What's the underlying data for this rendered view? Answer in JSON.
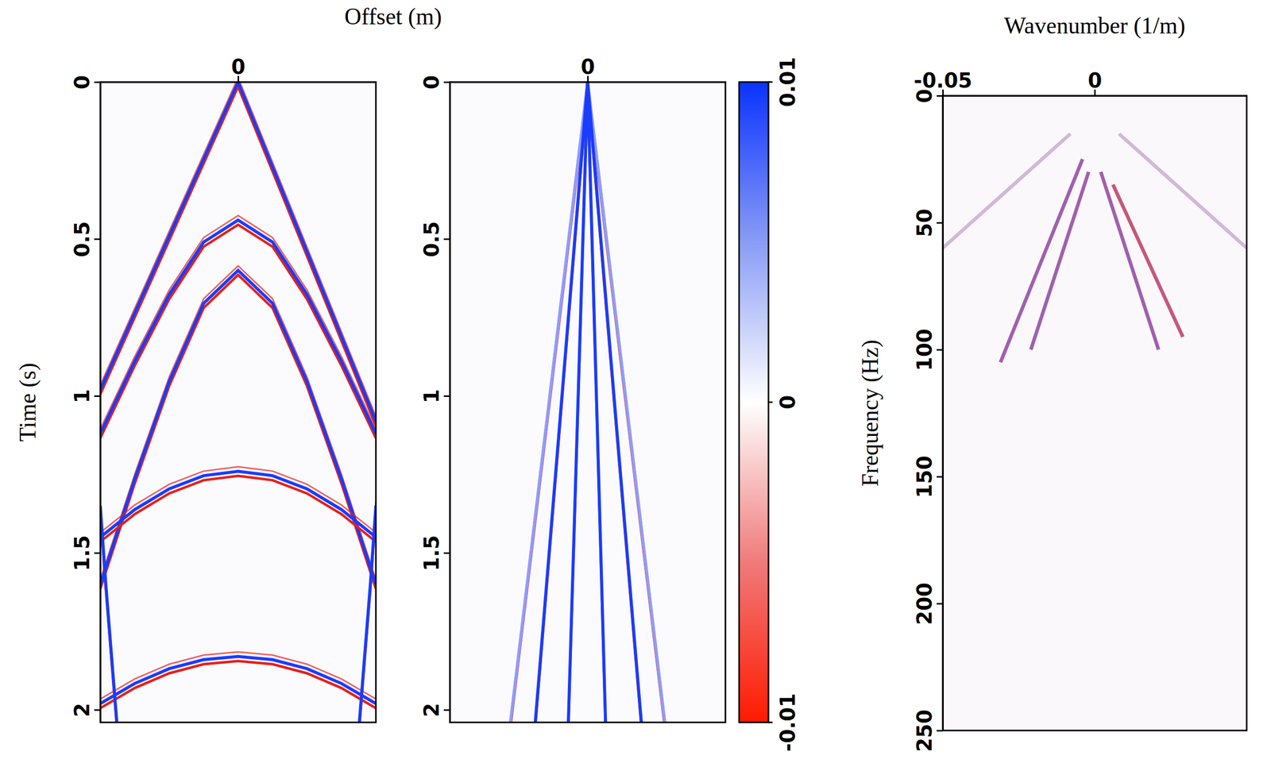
{
  "chart_data": [
    {
      "type": "line",
      "xlabel": "Offset (m)",
      "ylabel": "Time (s)",
      "line_style": "wavelet",
      "xlim": [
        -1000,
        1000
      ],
      "xticks": [
        0
      ],
      "ylim": [
        0,
        2.04
      ],
      "yticks": [
        0,
        0.5,
        1,
        1.5,
        2
      ],
      "series": [
        {
          "color": "#1a3cff",
          "x": [
            -1000,
            0,
            1000
          ],
          "values": [
            0.98,
            0,
            1.08
          ]
        },
        {
          "color": "#1a3cff",
          "x": [
            -1000,
            -750,
            -500,
            -250,
            0,
            250,
            500,
            750,
            1000
          ],
          "values": [
            1.12,
            0.889,
            0.677,
            0.51,
            0.44,
            0.51,
            0.677,
            0.889,
            1.12
          ]
        },
        {
          "color": "#1a3cff",
          "x": [
            -1000,
            -750,
            -500,
            -250,
            0,
            250,
            500,
            750,
            1000
          ],
          "values": [
            1.6,
            1.264,
            0.954,
            0.705,
            0.6,
            0.705,
            0.954,
            1.264,
            1.6
          ]
        },
        {
          "color": "#1a3cff",
          "x": [
            -1000,
            -750,
            -500,
            -250,
            0,
            250,
            500,
            750,
            1000
          ],
          "values": [
            1.45,
            1.362,
            1.296,
            1.254,
            1.24,
            1.254,
            1.296,
            1.362,
            1.45
          ]
        },
        {
          "color": "#1a3cff",
          "x": [
            -1000,
            -750,
            -500,
            -250,
            0,
            250,
            500,
            750,
            1000
          ],
          "values": [
            1.98,
            1.916,
            1.869,
            1.84,
            1.83,
            1.84,
            1.869,
            1.916,
            1.98
          ]
        },
        {
          "color": "#1a3cff",
          "x": [
            -1000,
            -960,
            -920,
            -880
          ],
          "values": [
            1.35,
            1.6,
            1.82,
            2.04
          ]
        },
        {
          "color": "#1a3cff",
          "x": [
            880,
            920,
            960,
            1000
          ],
          "values": [
            2.04,
            1.82,
            1.6,
            1.35
          ]
        }
      ]
    },
    {
      "type": "line",
      "line_style": "wavelet",
      "xlim": [
        -1000,
        1000
      ],
      "xticks": [
        0
      ],
      "ylim": [
        0,
        2.04
      ],
      "yticks": [
        0,
        0.5,
        1,
        1.5,
        2
      ],
      "colorbar_lim": [
        -0.01,
        0.01
      ],
      "colorbar_ticks": [
        -0.01,
        0,
        0.01
      ],
      "series": [
        {
          "color": "#8f9cff",
          "x": [
            -560,
            0,
            560
          ],
          "values": [
            2.04,
            0,
            2.04
          ]
        },
        {
          "color": "#1a3cff",
          "x": [
            -380,
            0,
            390
          ],
          "values": [
            2.04,
            0,
            2.04
          ]
        },
        {
          "color": "#1a3cff",
          "x": [
            -140,
            0,
            130
          ],
          "values": [
            2.04,
            0,
            2.04
          ]
        }
      ]
    },
    {
      "type": "line",
      "xlabel": "Wavenumber (1/m)",
      "ylabel": "Frequency (Hz)",
      "line_style": "solid",
      "xlim": [
        -0.05,
        0.05
      ],
      "xticks": [
        -0.05,
        0
      ],
      "ylim": [
        0,
        250
      ],
      "yticks": [
        0,
        50,
        100,
        150,
        200,
        250
      ],
      "series": [
        {
          "color": "#8a3a9a",
          "x": [
            -0.004,
            -0.031
          ],
          "values": [
            25,
            105
          ]
        },
        {
          "color": "#8a3a9a",
          "x": [
            -0.002,
            -0.021
          ],
          "values": [
            30,
            100
          ]
        },
        {
          "color": "#8a3a9a",
          "x": [
            0.002,
            0.021
          ],
          "values": [
            30,
            100
          ]
        },
        {
          "color": "#b8305a",
          "x": [
            0.006,
            0.029
          ],
          "values": [
            35,
            95
          ]
        },
        {
          "color": "#c9a6cf",
          "x": [
            -0.008,
            -0.05
          ],
          "values": [
            15,
            60
          ]
        },
        {
          "color": "#c9a6cf",
          "x": [
            0.008,
            0.05
          ],
          "values": [
            15,
            60
          ]
        }
      ]
    }
  ]
}
